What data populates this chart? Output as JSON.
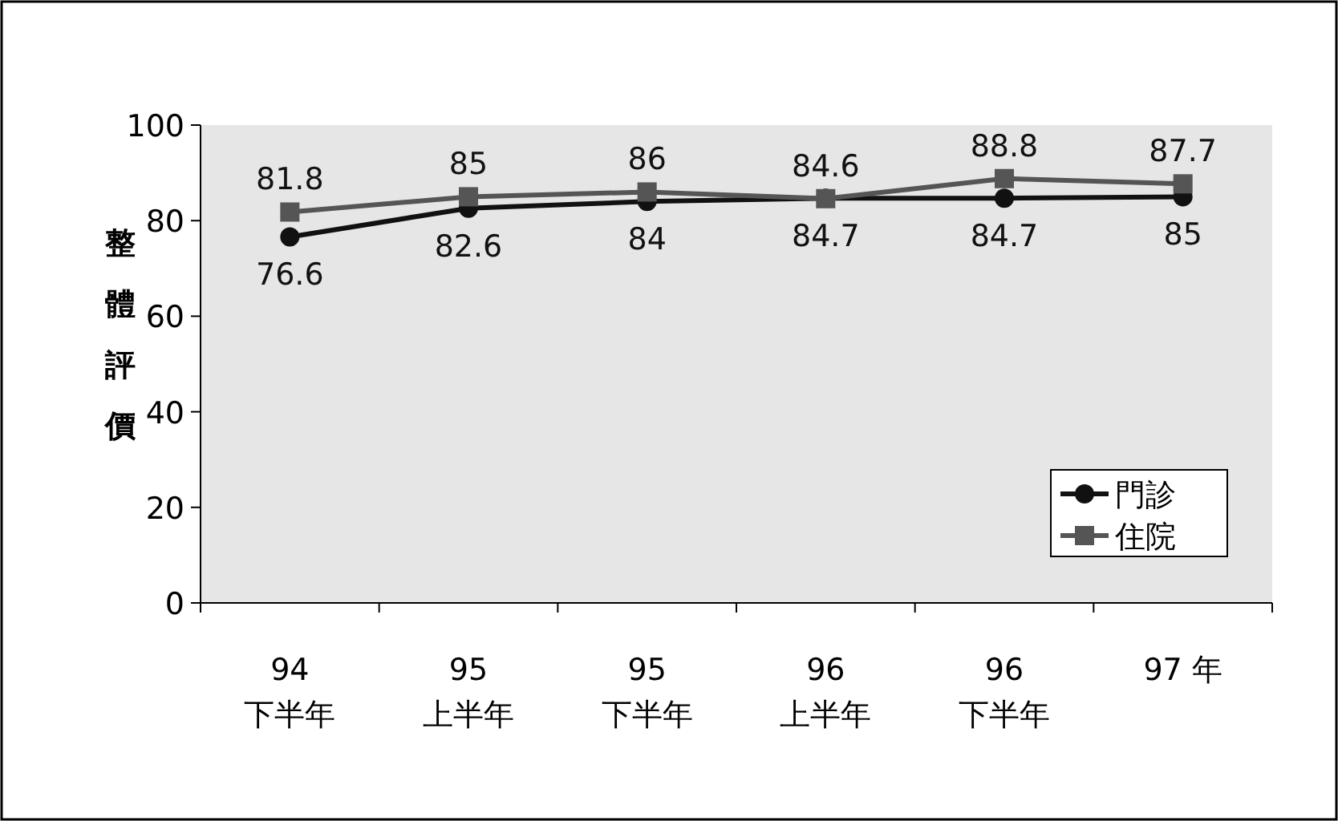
{
  "chart_data": {
    "type": "line",
    "categories": [
      "94\n下半年",
      "95\n上半年",
      "95\n下半年",
      "96\n上半年",
      "96\n下半年",
      "97 年"
    ],
    "ylabel": "整體評價",
    "ylim": [
      0,
      100
    ],
    "yticks": [
      0,
      20,
      40,
      60,
      80,
      100
    ],
    "grid": false,
    "legend": "right",
    "data_labels": true,
    "series": [
      {
        "name": "門診",
        "color": "#111111",
        "marker": "circle",
        "values": [
          76.6,
          82.6,
          84,
          84.7,
          84.7,
          85
        ]
      },
      {
        "name": "住院",
        "color": "#555555",
        "marker": "square",
        "values": [
          81.8,
          85,
          86,
          84.6,
          88.8,
          87.7
        ]
      }
    ]
  }
}
